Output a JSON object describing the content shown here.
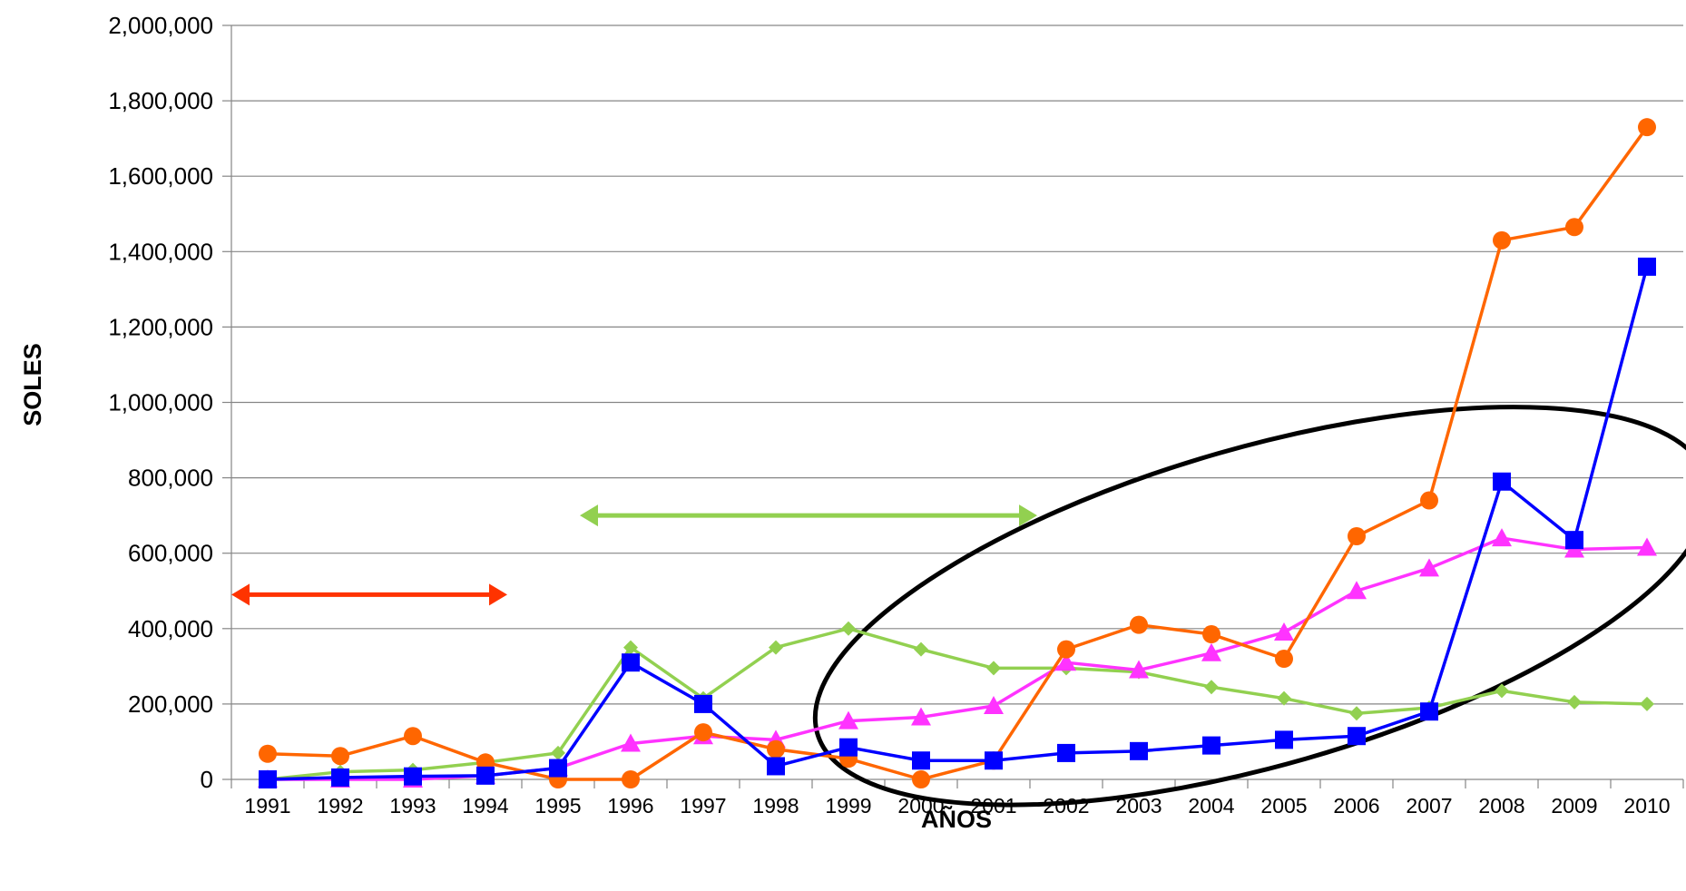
{
  "chart_data": {
    "type": "line",
    "title": "",
    "xlabel": "AÑOS",
    "ylabel": "SOLES",
    "ylim": [
      0,
      2000000
    ],
    "yticks": [
      0,
      200000,
      400000,
      600000,
      800000,
      1000000,
      1200000,
      1400000,
      1600000,
      1800000,
      2000000
    ],
    "ytick_labels": [
      "0",
      "200,000",
      "400,000",
      "600,000",
      "800,000",
      "1,000,000",
      "1,200,000",
      "1,400,000",
      "1,600,000",
      "1,800,000",
      "2,000,000"
    ],
    "categories": [
      "1991",
      "1992",
      "1993",
      "1994",
      "1995",
      "1996",
      "1997",
      "1998",
      "1999",
      "2000",
      "2001",
      "2002",
      "2003",
      "2004",
      "2005",
      "2006",
      "2007",
      "2008",
      "2009",
      "2010"
    ],
    "grid": "horizontal",
    "legend": "none",
    "series": [
      {
        "color": "#92D050",
        "marker": "diamond",
        "values": [
          0,
          20000,
          25000,
          45000,
          70000,
          350000,
          215000,
          350000,
          400000,
          345000,
          295000,
          295000,
          285000,
          245000,
          215000,
          175000,
          190000,
          235000,
          205000,
          200000
        ]
      },
      {
        "color": "#FF33FF",
        "marker": "triangle",
        "values": [
          0,
          0,
          0,
          10000,
          30000,
          95000,
          115000,
          105000,
          155000,
          165000,
          195000,
          310000,
          290000,
          335000,
          390000,
          500000,
          560000,
          640000,
          610000,
          615000
        ]
      },
      {
        "color": "#FF6600",
        "marker": "circle",
        "values": [
          68000,
          62000,
          115000,
          45000,
          0,
          0,
          125000,
          80000,
          55000,
          0,
          50000,
          345000,
          410000,
          385000,
          320000,
          645000,
          740000,
          1430000,
          1465000,
          1730000
        ]
      },
      {
        "color": "#0000FF",
        "marker": "square",
        "values": [
          0,
          5000,
          8000,
          10000,
          30000,
          310000,
          200000,
          35000,
          85000,
          50000,
          50000,
          70000,
          75000,
          90000,
          105000,
          115000,
          180000,
          790000,
          635000,
          1360000
        ]
      }
    ],
    "annotations": [
      {
        "type": "double-arrow",
        "color": "#FF3300",
        "from_x": "1990.5",
        "to_x": "1994.3",
        "y": 490000
      },
      {
        "type": "double-arrow",
        "color": "#92D050",
        "from_x": "1995.3",
        "to_x": "2001.6",
        "y": 700000
      },
      {
        "type": "ellipse",
        "color": "#000000",
        "center_x": "2004.7",
        "center_y": 460000,
        "note": ""
      }
    ]
  }
}
